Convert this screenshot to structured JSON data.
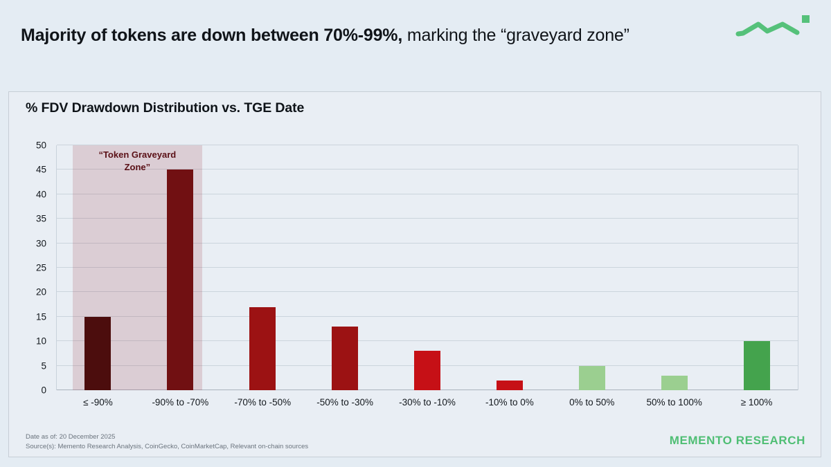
{
  "header": {
    "title_bold": "Majority of tokens are down between 70%-99%,",
    "title_regular": " marking the “graveyard zone”"
  },
  "card": {
    "footer": {
      "date_line": "Date as of: 20 December 2025",
      "source_line": "Source(s): Memento Research Analysis, CoinGecko, CoinMarketCap, Relevant on-chain sources",
      "brand": "MEMENTO RESEARCH"
    }
  },
  "colors": {
    "brand_green": "#4FBE74",
    "logo_green": "#55C17A",
    "page_bg": "#E4ECF3",
    "card_bg": "#E9EEF4"
  },
  "chart_data": {
    "type": "bar",
    "title": "% FDV Drawdown Distribution vs. TGE Date",
    "categories": [
      "≤ -90%",
      "-90% to -70%",
      "-70% to -50%",
      "-50% to -30%",
      "-30% to -10%",
      "-10% to 0%",
      "0% to 50%",
      "50% to 100%",
      "≥ 100%"
    ],
    "values": [
      15,
      45,
      17,
      13,
      8,
      2,
      5,
      3,
      10
    ],
    "bar_colors": [
      "#4C0D0D",
      "#711012",
      "#9C1213",
      "#9C1213",
      "#C61016",
      "#C61016",
      "#9BCF90",
      "#9BCF90",
      "#44A34D"
    ],
    "xlabel": "",
    "ylabel": "",
    "ylim": [
      0,
      50
    ],
    "ytick_step": 5,
    "grid": true,
    "legend": "none",
    "annotation": {
      "label": "“Token Graveyard Zone”",
      "covers_categories": [
        "≤ -90%",
        "-90% to -70%"
      ],
      "fill_color": "rgba(154,54,65,0.18)",
      "label_color": "#5A1016"
    }
  }
}
